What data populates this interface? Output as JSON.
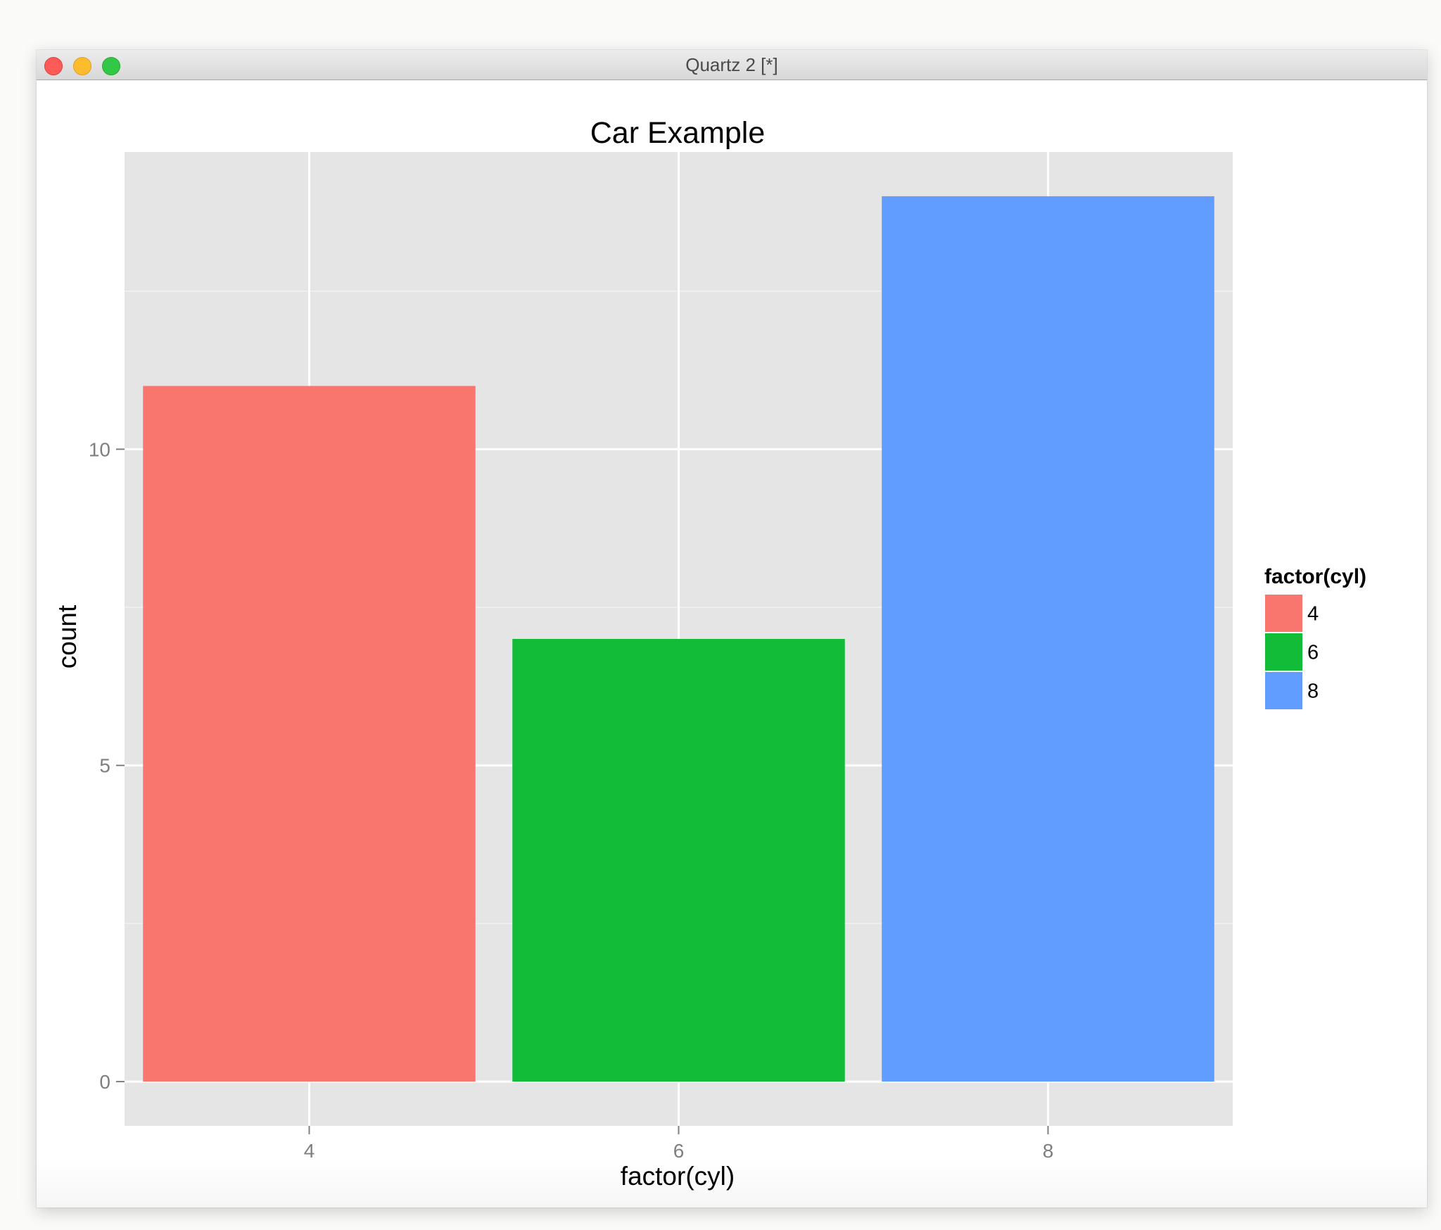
{
  "window": {
    "title": "Quartz 2 [*]"
  },
  "chart_data": {
    "type": "bar",
    "title": "Car Example",
    "xlabel": "factor(cyl)",
    "ylabel": "count",
    "categories": [
      "4",
      "6",
      "8"
    ],
    "values": [
      11,
      7,
      14
    ],
    "ylim": [
      -0.7,
      14.7
    ],
    "yticks": [
      0,
      5,
      10
    ],
    "grid": true,
    "colors": [
      "#F8766D",
      "#13BC38",
      "#619CFF"
    ],
    "panel_background": "#E5E5E5",
    "legend": {
      "title": "factor(cyl)",
      "placement": "right",
      "entries": [
        "4",
        "6",
        "8"
      ]
    }
  }
}
